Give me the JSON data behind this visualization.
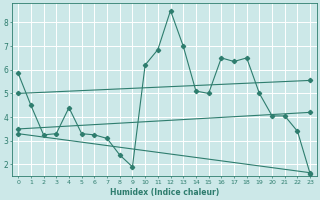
{
  "xlabel": "Humidex (Indice chaleur)",
  "bg_color": "#cce8e8",
  "grid_color": "#ffffff",
  "line_color": "#2e7d6e",
  "xlim": [
    -0.5,
    23.5
  ],
  "ylim": [
    1.5,
    8.8
  ],
  "yticks": [
    2,
    3,
    4,
    5,
    6,
    7,
    8
  ],
  "xticks": [
    0,
    1,
    2,
    3,
    4,
    5,
    6,
    7,
    8,
    9,
    10,
    11,
    12,
    13,
    14,
    15,
    16,
    17,
    18,
    19,
    20,
    21,
    22,
    23
  ],
  "line1_x": [
    0,
    1,
    2,
    3,
    4,
    5,
    6,
    7,
    8,
    9,
    10,
    11,
    12,
    13,
    14,
    15,
    16,
    17,
    18,
    19,
    20,
    21,
    22,
    23
  ],
  "line1_y": [
    5.85,
    4.5,
    3.25,
    3.3,
    4.4,
    3.3,
    3.25,
    3.1,
    2.4,
    1.9,
    6.2,
    6.85,
    8.5,
    7.0,
    5.1,
    5.0,
    6.5,
    6.35,
    6.5,
    5.0,
    4.05,
    4.05,
    3.4,
    1.6
  ],
  "line2_x": [
    0,
    23
  ],
  "line2_y": [
    5.0,
    5.55
  ],
  "line3_x": [
    0,
    23
  ],
  "line3_y": [
    3.5,
    4.2
  ],
  "line4_x": [
    0,
    23
  ],
  "line4_y": [
    3.3,
    1.65
  ]
}
